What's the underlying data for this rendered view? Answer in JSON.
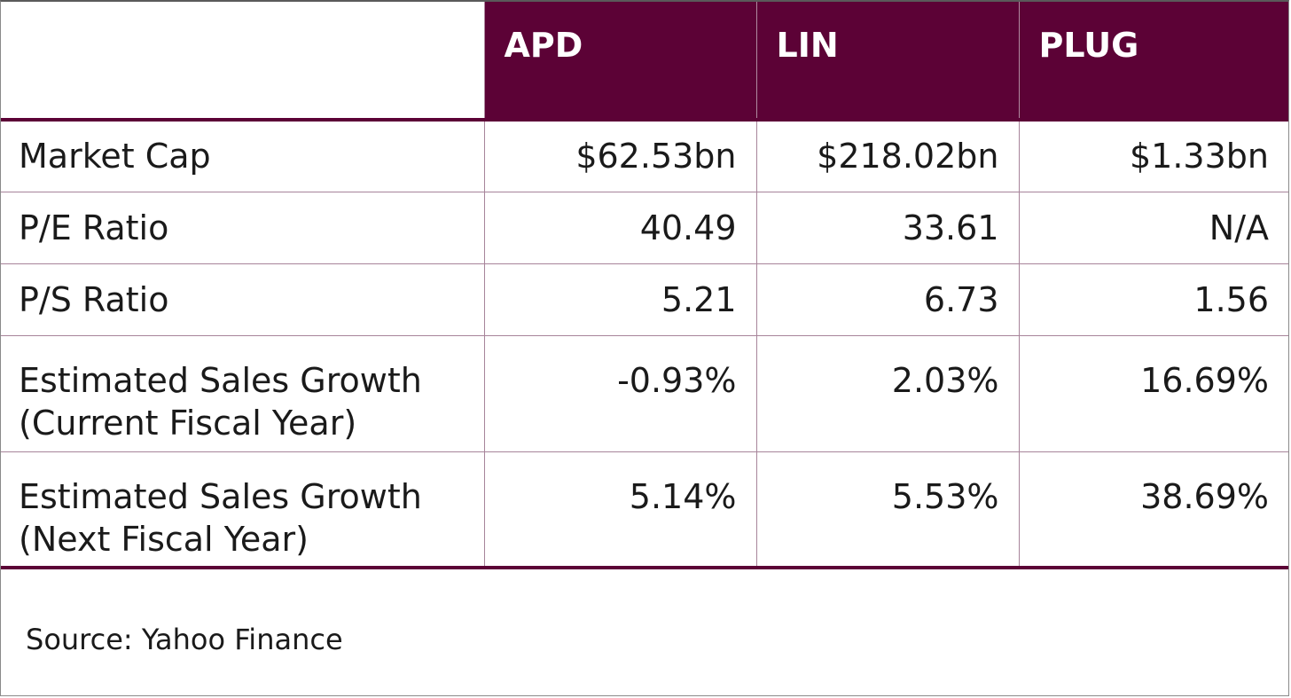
{
  "table": {
    "corner": "",
    "columns": [
      "APD",
      "LIN",
      "PLUG"
    ],
    "rows": [
      {
        "label": "Market Cap",
        "values": [
          "$62.53bn",
          "$218.02bn",
          "$1.33bn"
        ]
      },
      {
        "label": "P/E Ratio",
        "values": [
          "40.49",
          "33.61",
          "N/A"
        ]
      },
      {
        "label": "P/S Ratio",
        "values": [
          "5.21",
          "6.73",
          "1.56"
        ]
      },
      {
        "label_line1": "Estimated Sales Growth",
        "label_line2": "(Current Fiscal Year)",
        "values": [
          "-0.93%",
          "2.03%",
          "16.69%"
        ]
      },
      {
        "label_line1": "Estimated Sales Growth",
        "label_line2": "(Next Fiscal Year)",
        "values": [
          "5.14%",
          "5.53%",
          "38.69%"
        ]
      }
    ]
  },
  "footer": {
    "source": "Source: Yahoo Finance"
  },
  "colors": {
    "header_bg": "#5c0236",
    "header_text": "#ffffff",
    "grid": "#a7849a"
  },
  "chart_data": {
    "type": "table",
    "columns": [
      "APD",
      "LIN",
      "PLUG"
    ],
    "rows": [
      {
        "metric": "Market Cap",
        "APD": "$62.53bn",
        "LIN": "$218.02bn",
        "PLUG": "$1.33bn"
      },
      {
        "metric": "P/E Ratio",
        "APD": 40.49,
        "LIN": 33.61,
        "PLUG": "N/A"
      },
      {
        "metric": "P/S Ratio",
        "APD": 5.21,
        "LIN": 6.73,
        "PLUG": 1.56
      },
      {
        "metric": "Estimated Sales Growth (Current Fiscal Year)",
        "APD": "-0.93%",
        "LIN": "2.03%",
        "PLUG": "16.69%"
      },
      {
        "metric": "Estimated Sales Growth (Next Fiscal Year)",
        "APD": "5.14%",
        "LIN": "5.53%",
        "PLUG": "38.69%"
      }
    ],
    "source": "Source: Yahoo Finance"
  }
}
